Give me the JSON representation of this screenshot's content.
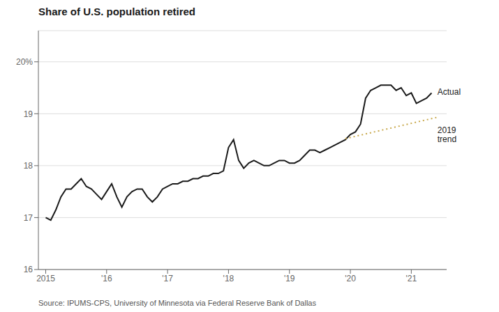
{
  "chart_data": {
    "type": "line",
    "title": "Share of U.S. population retired",
    "source": "Source: IPUMS-CPS, University of Minnesota via Federal Reserve Bank of Dallas",
    "xlim": [
      2014.88,
      2021.58
    ],
    "xticks": [
      2015,
      {
        "value": 2016,
        "label": "'16"
      },
      {
        "value": 2017,
        "label": "'17"
      },
      {
        "value": 2018,
        "label": "'18"
      },
      {
        "value": 2019,
        "label": "'19"
      },
      {
        "value": 2020,
        "label": "'20"
      },
      {
        "value": 2021,
        "label": "'21"
      }
    ],
    "ylim": [
      16,
      20.6
    ],
    "yticks": [
      16,
      17,
      18,
      19,
      {
        "value": 20,
        "label": "20%"
      }
    ],
    "grid": true,
    "series": [
      {
        "name": "Actual",
        "color": "#1a1a1a",
        "x": [
          2015.0,
          2015.083,
          2015.167,
          2015.25,
          2015.333,
          2015.417,
          2015.5,
          2015.583,
          2015.667,
          2015.75,
          2015.833,
          2015.917,
          2016.0,
          2016.083,
          2016.167,
          2016.25,
          2016.333,
          2016.417,
          2016.5,
          2016.583,
          2016.667,
          2016.75,
          2016.833,
          2016.917,
          2017.0,
          2017.083,
          2017.167,
          2017.25,
          2017.333,
          2017.417,
          2017.5,
          2017.583,
          2017.667,
          2017.75,
          2017.833,
          2017.917,
          2018.0,
          2018.083,
          2018.167,
          2018.25,
          2018.333,
          2018.417,
          2018.5,
          2018.583,
          2018.667,
          2018.75,
          2018.833,
          2018.917,
          2019.0,
          2019.083,
          2019.167,
          2019.25,
          2019.333,
          2019.417,
          2019.5,
          2019.583,
          2019.667,
          2019.75,
          2019.833,
          2019.917,
          2020.0,
          2020.083,
          2020.167,
          2020.25,
          2020.333,
          2020.417,
          2020.5,
          2020.583,
          2020.667,
          2020.75,
          2020.833,
          2020.917,
          2021.0,
          2021.083,
          2021.167,
          2021.25,
          2021.333
        ],
        "values": [
          17.0,
          16.95,
          17.15,
          17.4,
          17.55,
          17.55,
          17.65,
          17.75,
          17.6,
          17.55,
          17.45,
          17.35,
          17.5,
          17.65,
          17.4,
          17.2,
          17.4,
          17.5,
          17.55,
          17.55,
          17.4,
          17.3,
          17.4,
          17.55,
          17.6,
          17.65,
          17.65,
          17.7,
          17.7,
          17.75,
          17.75,
          17.8,
          17.8,
          17.85,
          17.85,
          17.9,
          18.35,
          18.5,
          18.1,
          17.95,
          18.05,
          18.1,
          18.05,
          18.0,
          18.0,
          18.05,
          18.1,
          18.1,
          18.05,
          18.05,
          18.1,
          18.2,
          18.3,
          18.3,
          18.25,
          18.3,
          18.35,
          18.4,
          18.45,
          18.5,
          18.6,
          18.65,
          18.8,
          19.3,
          19.45,
          19.5,
          19.55,
          19.55,
          19.55,
          19.45,
          19.5,
          19.35,
          19.4,
          19.2,
          19.25,
          19.3,
          19.4
        ]
      },
      {
        "name": "2019\ntrend",
        "color": "#c8a84b",
        "line_style": "dotted",
        "x": [
          2019.917,
          2021.42
        ],
        "values": [
          18.52,
          18.93
        ]
      }
    ],
    "annotations": [
      {
        "text": "Actual",
        "x": 2021.36,
        "y": 19.42
      },
      {
        "text": "2019\ntrend",
        "x": 2021.36,
        "y": 18.78
      }
    ]
  }
}
